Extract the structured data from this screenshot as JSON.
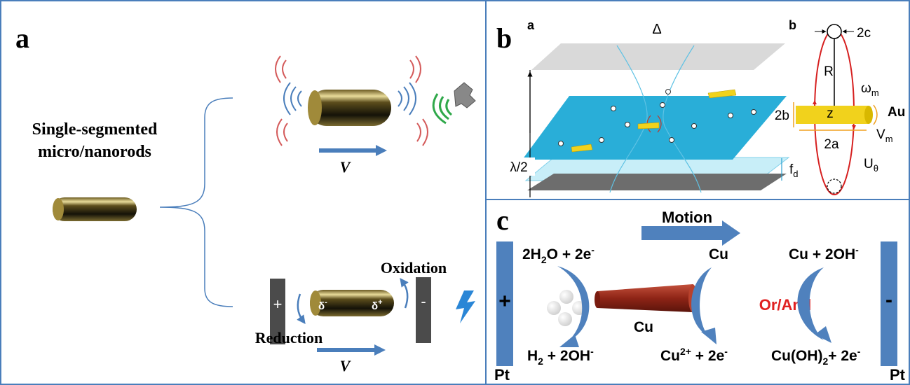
{
  "panel_a": {
    "label": "a",
    "title_lines": [
      "Single-segmented",
      "micro/nanorods"
    ],
    "velocity_top": "V",
    "velocity_bottom": "V",
    "electrode_positive": "+",
    "electrode_negative": "-",
    "charge_left": [
      "δ",
      "-"
    ],
    "charge_right": [
      "δ",
      "+"
    ],
    "oxidation": "Oxidation",
    "reduction": "Reduction"
  },
  "panel_b": {
    "label": "b",
    "left_label": "a",
    "delta": "Δ",
    "half_wavelength": "λ/2",
    "displacement": [
      "f",
      "d"
    ],
    "right_label": "b",
    "diameter": "2c",
    "radius": "R",
    "z": "z",
    "omega": [
      "ω",
      "m"
    ],
    "rod_width": "2b",
    "au": "Au",
    "velocity": [
      "V",
      "m"
    ],
    "rod_length": "2a",
    "streaming": [
      "U",
      "θ"
    ]
  },
  "panel_c": {
    "label": "c",
    "motion": "Motion",
    "reduction_reactants": [
      "2H",
      "2",
      "O + 2e",
      "-"
    ],
    "oxidation_reactant": "Cu",
    "hydroxide_reactants": [
      "Cu + 2OH",
      "-"
    ],
    "plus": "+",
    "rod": "Cu",
    "or_and": "Or/And",
    "minus": "-",
    "reduction_products": [
      "H",
      "2",
      " + 2OH",
      "-"
    ],
    "oxidation_products": [
      "Cu",
      "2+",
      " + 2e",
      "-"
    ],
    "hydroxide_products": [
      "Cu(OH)",
      "2",
      "+ 2e",
      "-"
    ],
    "anode": "Pt",
    "cathode": "Pt"
  }
}
